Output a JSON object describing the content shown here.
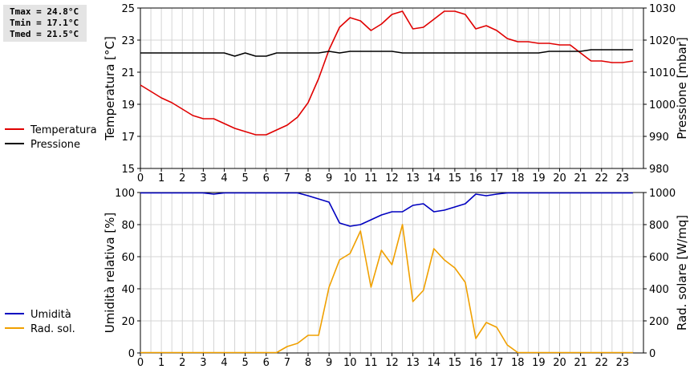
{
  "stats": {
    "tmax": "Tmax = 24.8°C",
    "tmin": "Tmin = 17.1°C",
    "tmed": "Tmed = 21.5°C"
  },
  "colors": {
    "temperature": "#e00000",
    "pressure": "#000000",
    "humidity": "#0000c0",
    "radiation": "#f0a000",
    "grid": "#d4d4d4"
  },
  "chart_data": [
    {
      "type": "line",
      "x": [
        0,
        0.5,
        1,
        1.5,
        2,
        2.5,
        3,
        3.5,
        4,
        4.5,
        5,
        5.5,
        6,
        6.5,
        7,
        7.5,
        8,
        8.5,
        9,
        9.5,
        10,
        10.5,
        11,
        11.5,
        12,
        12.5,
        13,
        13.5,
        14,
        14.5,
        15,
        15.5,
        16,
        16.5,
        17,
        17.5,
        18,
        18.5,
        19,
        19.5,
        20,
        20.5,
        21,
        21.5,
        22,
        22.5,
        23,
        23.5
      ],
      "xlim": [
        0,
        24
      ],
      "xticks": [
        "0",
        "1",
        "2",
        "3",
        "4",
        "5",
        "6",
        "7",
        "8",
        "9",
        "10",
        "11",
        "12",
        "13",
        "14",
        "15",
        "16",
        "17",
        "18",
        "19",
        "20",
        "21",
        "22",
        "23"
      ],
      "left_axis": {
        "label": "Temperatura [°C]",
        "ylim": [
          15,
          25
        ],
        "ticks": [
          "15",
          "17",
          "19",
          "21",
          "23",
          "25"
        ]
      },
      "right_axis": {
        "label": "Pressione [mbar]",
        "ylim": [
          980,
          1030
        ],
        "ticks": [
          "980",
          "990",
          "1000",
          "1010",
          "1020",
          "1030"
        ]
      },
      "grid": true,
      "series": [
        {
          "name": "Temperatura",
          "axis": "left",
          "values": [
            20.2,
            19.8,
            19.4,
            19.1,
            18.7,
            18.3,
            18.1,
            18.1,
            17.8,
            17.5,
            17.3,
            17.1,
            17.1,
            17.4,
            17.7,
            18.2,
            19.1,
            20.6,
            22.4,
            23.8,
            24.4,
            24.2,
            23.6,
            24.0,
            24.6,
            24.8,
            23.7,
            23.8,
            24.3,
            24.8,
            24.8,
            24.6,
            23.7,
            23.9,
            23.6,
            23.1,
            22.9,
            22.9,
            22.8,
            22.8,
            22.7,
            22.7,
            22.2,
            21.7,
            21.7,
            21.6,
            21.6,
            21.7
          ]
        },
        {
          "name": "Pressione",
          "axis": "right",
          "values": [
            1016,
            1016,
            1016,
            1016,
            1016,
            1016,
            1016,
            1016,
            1016,
            1015,
            1016,
            1015,
            1015,
            1016,
            1016,
            1016,
            1016,
            1016,
            1016.5,
            1016,
            1016.5,
            1016.5,
            1016.5,
            1016.5,
            1016.5,
            1016,
            1016,
            1016,
            1016,
            1016,
            1016,
            1016,
            1016,
            1016,
            1016,
            1016,
            1016,
            1016,
            1016,
            1016.5,
            1016.5,
            1016.5,
            1016.5,
            1017,
            1017,
            1017,
            1017,
            1017
          ]
        }
      ]
    },
    {
      "type": "line",
      "x": [
        0,
        0.5,
        1,
        1.5,
        2,
        2.5,
        3,
        3.5,
        4,
        4.5,
        5,
        5.5,
        6,
        6.5,
        7,
        7.5,
        8,
        8.5,
        9,
        9.5,
        10,
        10.5,
        11,
        11.5,
        12,
        12.5,
        13,
        13.5,
        14,
        14.5,
        15,
        15.5,
        16,
        16.5,
        17,
        17.5,
        18,
        18.5,
        19,
        19.5,
        20,
        20.5,
        21,
        21.5,
        22,
        22.5,
        23,
        23.5
      ],
      "xlim": [
        0,
        24
      ],
      "xticks": [
        "0",
        "1",
        "2",
        "3",
        "4",
        "5",
        "6",
        "7",
        "8",
        "9",
        "10",
        "11",
        "12",
        "13",
        "14",
        "15",
        "16",
        "17",
        "18",
        "19",
        "20",
        "21",
        "22",
        "23"
      ],
      "left_axis": {
        "label": "Umidità relativa [%]",
        "ylim": [
          0,
          100
        ],
        "ticks": [
          "0",
          "20",
          "40",
          "60",
          "80",
          "100"
        ]
      },
      "right_axis": {
        "label": "Rad. solare [W/mq]",
        "ylim": [
          0,
          1000
        ],
        "ticks": [
          "0",
          "200",
          "400",
          "600",
          "800",
          "1000"
        ]
      },
      "grid": true,
      "series": [
        {
          "name": "Umidità",
          "axis": "left",
          "values": [
            100,
            100,
            100,
            100,
            100,
            100,
            100,
            99,
            100,
            100,
            100,
            100,
            100,
            100,
            100,
            100,
            98,
            96,
            94,
            81,
            79,
            80,
            83,
            86,
            88,
            88,
            92,
            93,
            88,
            89,
            91,
            93,
            99,
            98,
            99,
            100,
            100,
            100,
            100,
            100,
            100,
            100,
            100,
            100,
            100,
            100,
            100,
            100
          ]
        },
        {
          "name": "Rad. sol.",
          "axis": "right",
          "values": [
            0,
            0,
            0,
            0,
            0,
            0,
            0,
            0,
            0,
            0,
            0,
            0,
            0,
            0,
            40,
            60,
            110,
            110,
            410,
            580,
            620,
            760,
            410,
            640,
            550,
            800,
            320,
            390,
            650,
            580,
            530,
            440,
            90,
            190,
            160,
            50,
            0,
            0,
            0,
            0,
            0,
            0,
            0,
            0,
            0,
            0,
            0,
            0
          ]
        }
      ]
    }
  ]
}
